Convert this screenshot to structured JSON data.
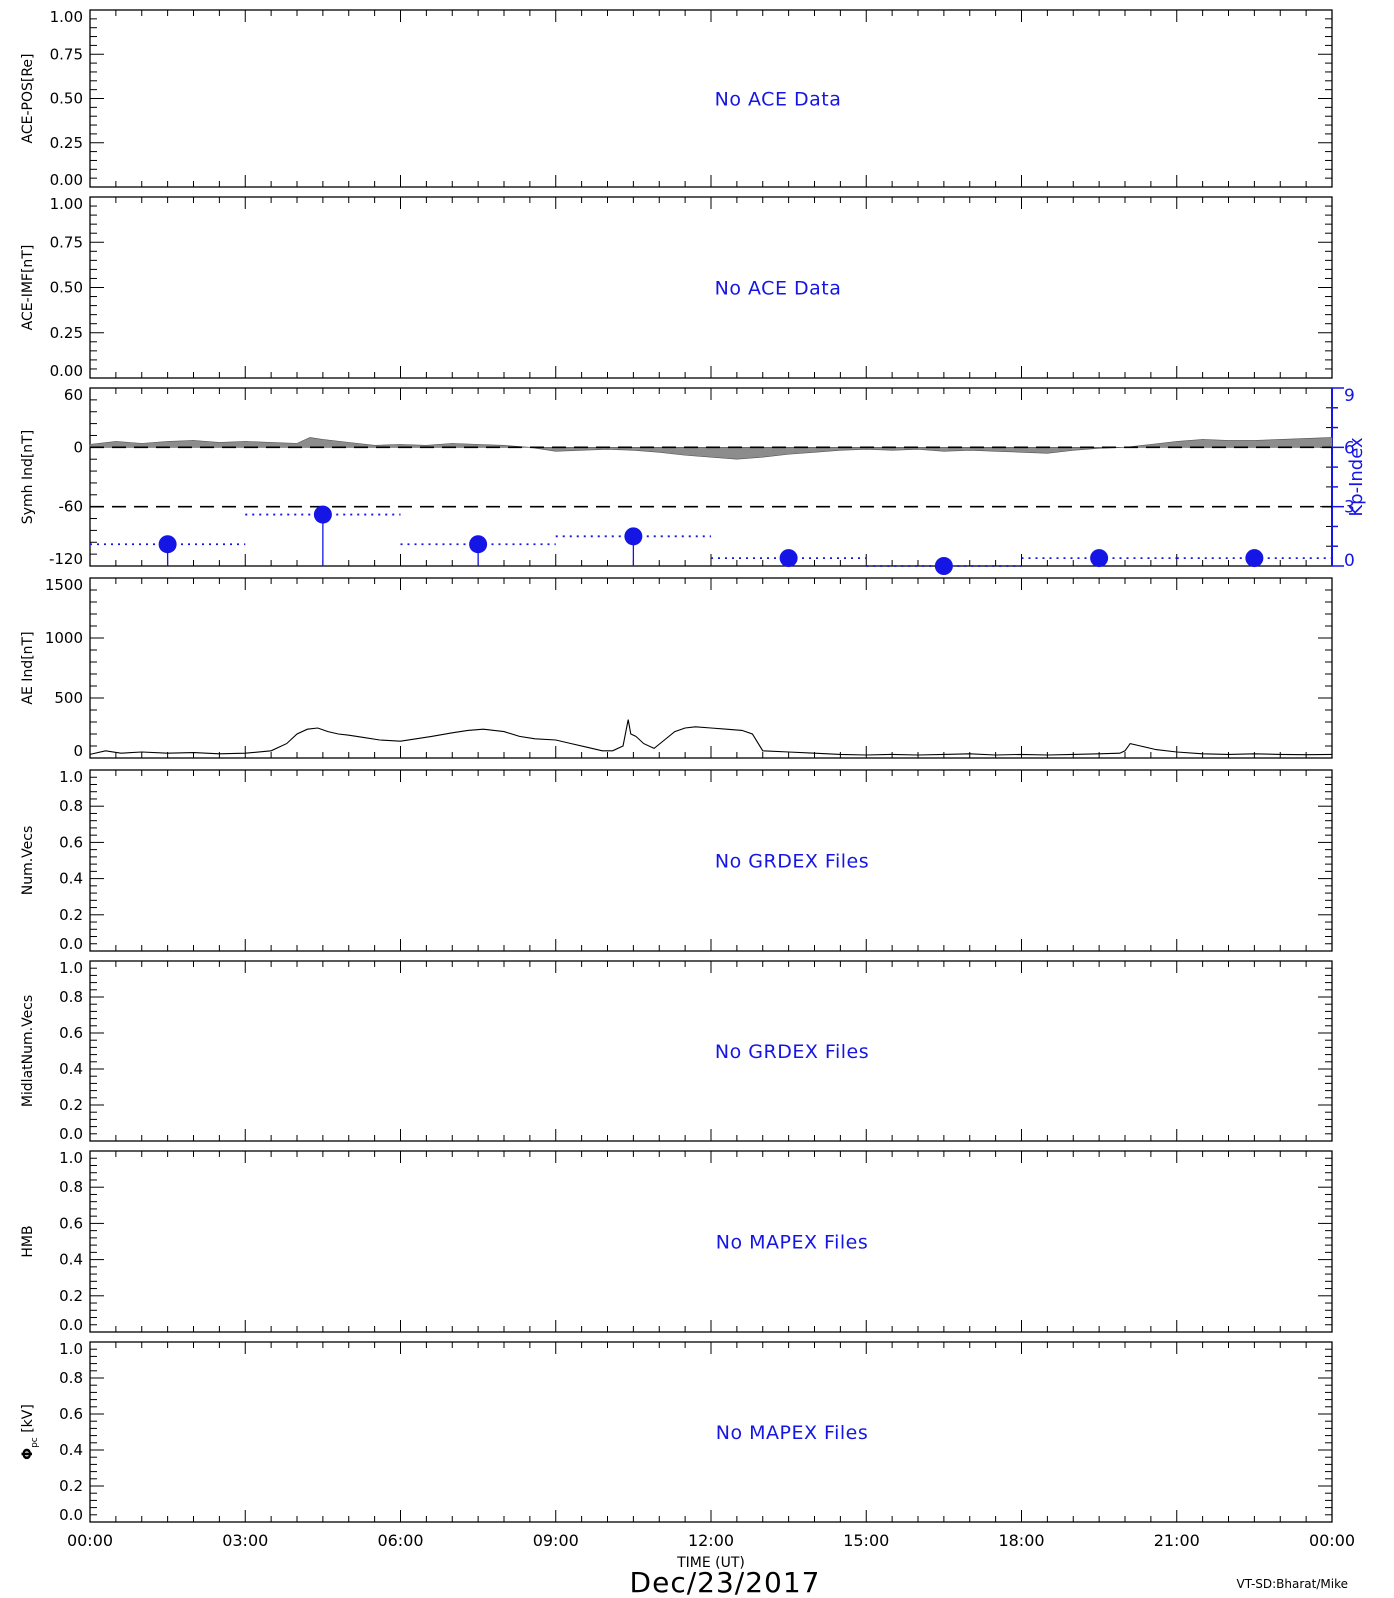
{
  "chart_data": {
    "type": "multi-panel time series",
    "x_axis": {
      "title": "TIME (UT)",
      "range_hours": [
        0,
        24
      ],
      "tick_labels": [
        "00:00",
        "03:00",
        "06:00",
        "09:00",
        "12:00",
        "15:00",
        "18:00",
        "21:00",
        "00:00"
      ],
      "date": "Dec/23/2017"
    },
    "credit": "VT-SD:Bharat/Mike",
    "panels": [
      {
        "id": "ace-pos",
        "ylabel": "ACE-POS[Re]",
        "ylim": [
          0,
          1
        ],
        "y_tick_labels": [
          "0.00",
          "0.25",
          "0.50",
          "0.75",
          "1.00"
        ],
        "message": "No ACE Data"
      },
      {
        "id": "ace-imf",
        "ylabel": "ACE-IMF[nT]",
        "ylim": [
          0,
          1
        ],
        "y_tick_labels": [
          "0.00",
          "0.25",
          "0.50",
          "0.75",
          "1.00"
        ],
        "message": "No ACE Data"
      },
      {
        "id": "symh",
        "ylabel": "Symh Ind[nT]",
        "ylim": [
          -120,
          60
        ],
        "y_tick_labels": [
          "-120",
          "-60",
          "0",
          "60"
        ],
        "reference_lines": [
          0,
          -60
        ],
        "symh": {
          "x": [
            0,
            0.5,
            1,
            1.5,
            2,
            2.5,
            3,
            3.5,
            4,
            4.25,
            4.5,
            5,
            5.5,
            6,
            6.5,
            7,
            7.5,
            8,
            8.5,
            9,
            9.5,
            10,
            10.5,
            11,
            11.5,
            12,
            12.5,
            13,
            13.5,
            14,
            14.5,
            15,
            15.5,
            16,
            16.5,
            17,
            17.5,
            18,
            18.5,
            19,
            19.5,
            20,
            20.5,
            21,
            21.5,
            22,
            22.5,
            23,
            23.5,
            24
          ],
          "y": [
            3,
            6,
            4,
            6,
            7,
            5,
            6,
            5,
            4,
            10,
            8,
            5,
            2,
            3,
            2,
            4,
            3,
            2,
            0,
            -4,
            -3,
            -2,
            -3,
            -5,
            -8,
            -10,
            -12,
            -10,
            -7,
            -5,
            -3,
            -2,
            -3,
            -2,
            -4,
            -3,
            -4,
            -5,
            -6,
            -3,
            -1,
            0,
            3,
            6,
            8,
            7,
            7,
            8,
            9,
            10
          ]
        },
        "kp": {
          "axis_title": "Kp-Index",
          "ylim": [
            0,
            9
          ],
          "tick_labels": [
            "0",
            "3",
            "6",
            "9"
          ],
          "bins": [
            {
              "start": 0,
              "end": 3,
              "value": 1.1
            },
            {
              "start": 3,
              "end": 6,
              "value": 2.6
            },
            {
              "start": 6,
              "end": 9,
              "value": 1.1
            },
            {
              "start": 9,
              "end": 12,
              "value": 1.5
            },
            {
              "start": 12,
              "end": 15,
              "value": 0.4
            },
            {
              "start": 15,
              "end": 18,
              "value": 0
            },
            {
              "start": 18,
              "end": 21,
              "value": 0.4
            },
            {
              "start": 21,
              "end": 24,
              "value": 0.4
            }
          ]
        }
      },
      {
        "id": "ae",
        "ylabel": "AE Ind[nT]",
        "ylim": [
          0,
          1500
        ],
        "y_tick_labels": [
          "0",
          "500",
          "1000",
          "1500"
        ],
        "series": {
          "x": [
            0,
            0.3,
            0.6,
            1,
            1.5,
            2,
            2.5,
            3,
            3.5,
            3.8,
            4,
            4.2,
            4.4,
            4.6,
            4.8,
            5,
            5.3,
            5.6,
            6,
            6.3,
            6.6,
            7,
            7.3,
            7.6,
            8,
            8.3,
            8.6,
            9,
            9.3,
            9.6,
            9.9,
            10.1,
            10.3,
            10.4,
            10.45,
            10.55,
            10.7,
            10.9,
            11.1,
            11.3,
            11.5,
            11.7,
            12,
            12.3,
            12.6,
            12.8,
            13,
            13.5,
            14,
            14.5,
            15,
            15.5,
            16,
            16.5,
            17,
            17.5,
            18,
            18.5,
            19,
            19.5,
            19.9,
            20,
            20.1,
            20.3,
            20.6,
            21,
            21.5,
            22,
            22.5,
            23,
            23.5,
            24
          ],
          "y": [
            30,
            60,
            40,
            50,
            40,
            45,
            35,
            40,
            60,
            120,
            200,
            240,
            250,
            220,
            200,
            190,
            170,
            150,
            140,
            160,
            180,
            210,
            230,
            240,
            220,
            180,
            160,
            150,
            120,
            90,
            60,
            60,
            100,
            320,
            200,
            180,
            120,
            80,
            150,
            220,
            250,
            260,
            250,
            240,
            230,
            200,
            60,
            50,
            40,
            30,
            25,
            30,
            25,
            30,
            35,
            25,
            30,
            25,
            30,
            35,
            40,
            60,
            120,
            100,
            70,
            50,
            35,
            30,
            35,
            30,
            28,
            30
          ]
        }
      },
      {
        "id": "num-vecs",
        "ylabel": "Num.Vecs",
        "ylim": [
          0,
          1
        ],
        "y_tick_labels": [
          "0.0",
          "0.2",
          "0.4",
          "0.6",
          "0.8",
          "1.0"
        ],
        "message": "No GRDEX Files"
      },
      {
        "id": "midlat-num-vecs",
        "ylabel": "MidlatNum.Vecs",
        "ylim": [
          0,
          1
        ],
        "y_tick_labels": [
          "0.0",
          "0.2",
          "0.4",
          "0.6",
          "0.8",
          "1.0"
        ],
        "message": "No GRDEX Files"
      },
      {
        "id": "hmb",
        "ylabel": "HMB",
        "ylim": [
          0,
          1
        ],
        "y_tick_labels": [
          "0.0",
          "0.2",
          "0.4",
          "0.6",
          "0.8",
          "1.0"
        ],
        "message": "No MAPEX Files"
      },
      {
        "id": "phi-pc",
        "ylabel": "Φ",
        "ylabel_sub": "pc",
        "ylabel_unit": " [kV]",
        "ylim": [
          0,
          1
        ],
        "y_tick_labels": [
          "0.0",
          "0.2",
          "0.4",
          "0.6",
          "0.8",
          "1.0"
        ],
        "message": "No MAPEX Files"
      }
    ]
  },
  "colors": {
    "axes": "#000000",
    "message": "#1515e6",
    "kp": "#1515e6",
    "symh_fill": "#8c8c8c",
    "ae_line": "#000000"
  }
}
